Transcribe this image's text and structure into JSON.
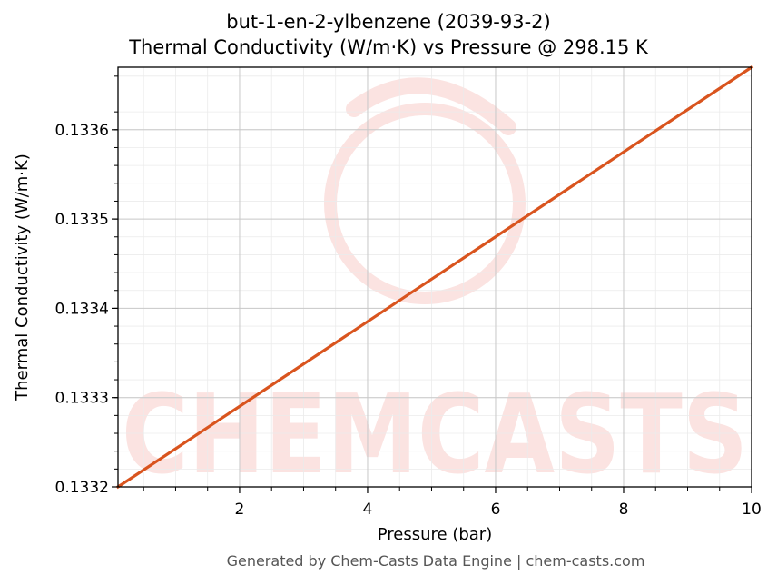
{
  "chart_data": {
    "type": "line",
    "title": "but-1-en-2-ylbenzene (2039-93-2)",
    "subtitle": "Thermal Conductivity (W/m·K) vs Pressure @ 298.15 K",
    "xlabel": "Pressure (bar)",
    "ylabel": "Thermal Conductivity (W/m·K)",
    "xlim": [
      0.1,
      10
    ],
    "ylim": [
      0.1332,
      0.13367
    ],
    "x_ticks": [
      2,
      4,
      6,
      8,
      10
    ],
    "x_tick_labels": [
      "2",
      "4",
      "6",
      "8",
      "10"
    ],
    "y_ticks": [
      0.1332,
      0.1333,
      0.1334,
      0.1335,
      0.1336
    ],
    "y_tick_labels": [
      "0.1332",
      "0.1333",
      "0.1334",
      "0.1335",
      "0.1336"
    ],
    "grid": true,
    "series": [
      {
        "color": "#d9541e",
        "x": [
          0.1,
          10
        ],
        "y": [
          0.1332,
          0.13367
        ]
      }
    ]
  },
  "watermark": {
    "text": "CHEMCASTS",
    "color": "#fbe3e1"
  },
  "footer": "Generated by Chem-Casts Data Engine | chem-casts.com"
}
